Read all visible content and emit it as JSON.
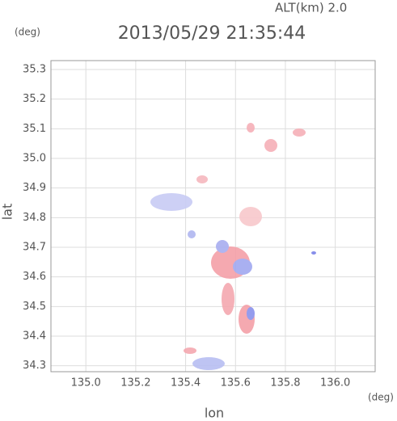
{
  "chart_data": {
    "type": "scatter",
    "title": "2013/05/29 21:35:44",
    "subtitle": "ALT(km) 2.0",
    "y_unit": "(deg)",
    "x_unit": "(deg)",
    "xlabel": "lon",
    "ylabel": "lat",
    "xlim": [
      134.86,
      136.16
    ],
    "ylim": [
      34.28,
      35.33
    ],
    "xticks": [
      {
        "value": 135.0,
        "label": "135.0"
      },
      135.2,
      135.4,
      135.6,
      135.8,
      {
        "value": 136.0,
        "label": "136.0"
      }
    ],
    "yticks": [
      34.3,
      34.4,
      34.5,
      34.6,
      34.7,
      34.8,
      34.9,
      {
        "value": 35.0,
        "label": "35.0"
      },
      35.1,
      35.2,
      35.3
    ],
    "grid": true
  }
}
